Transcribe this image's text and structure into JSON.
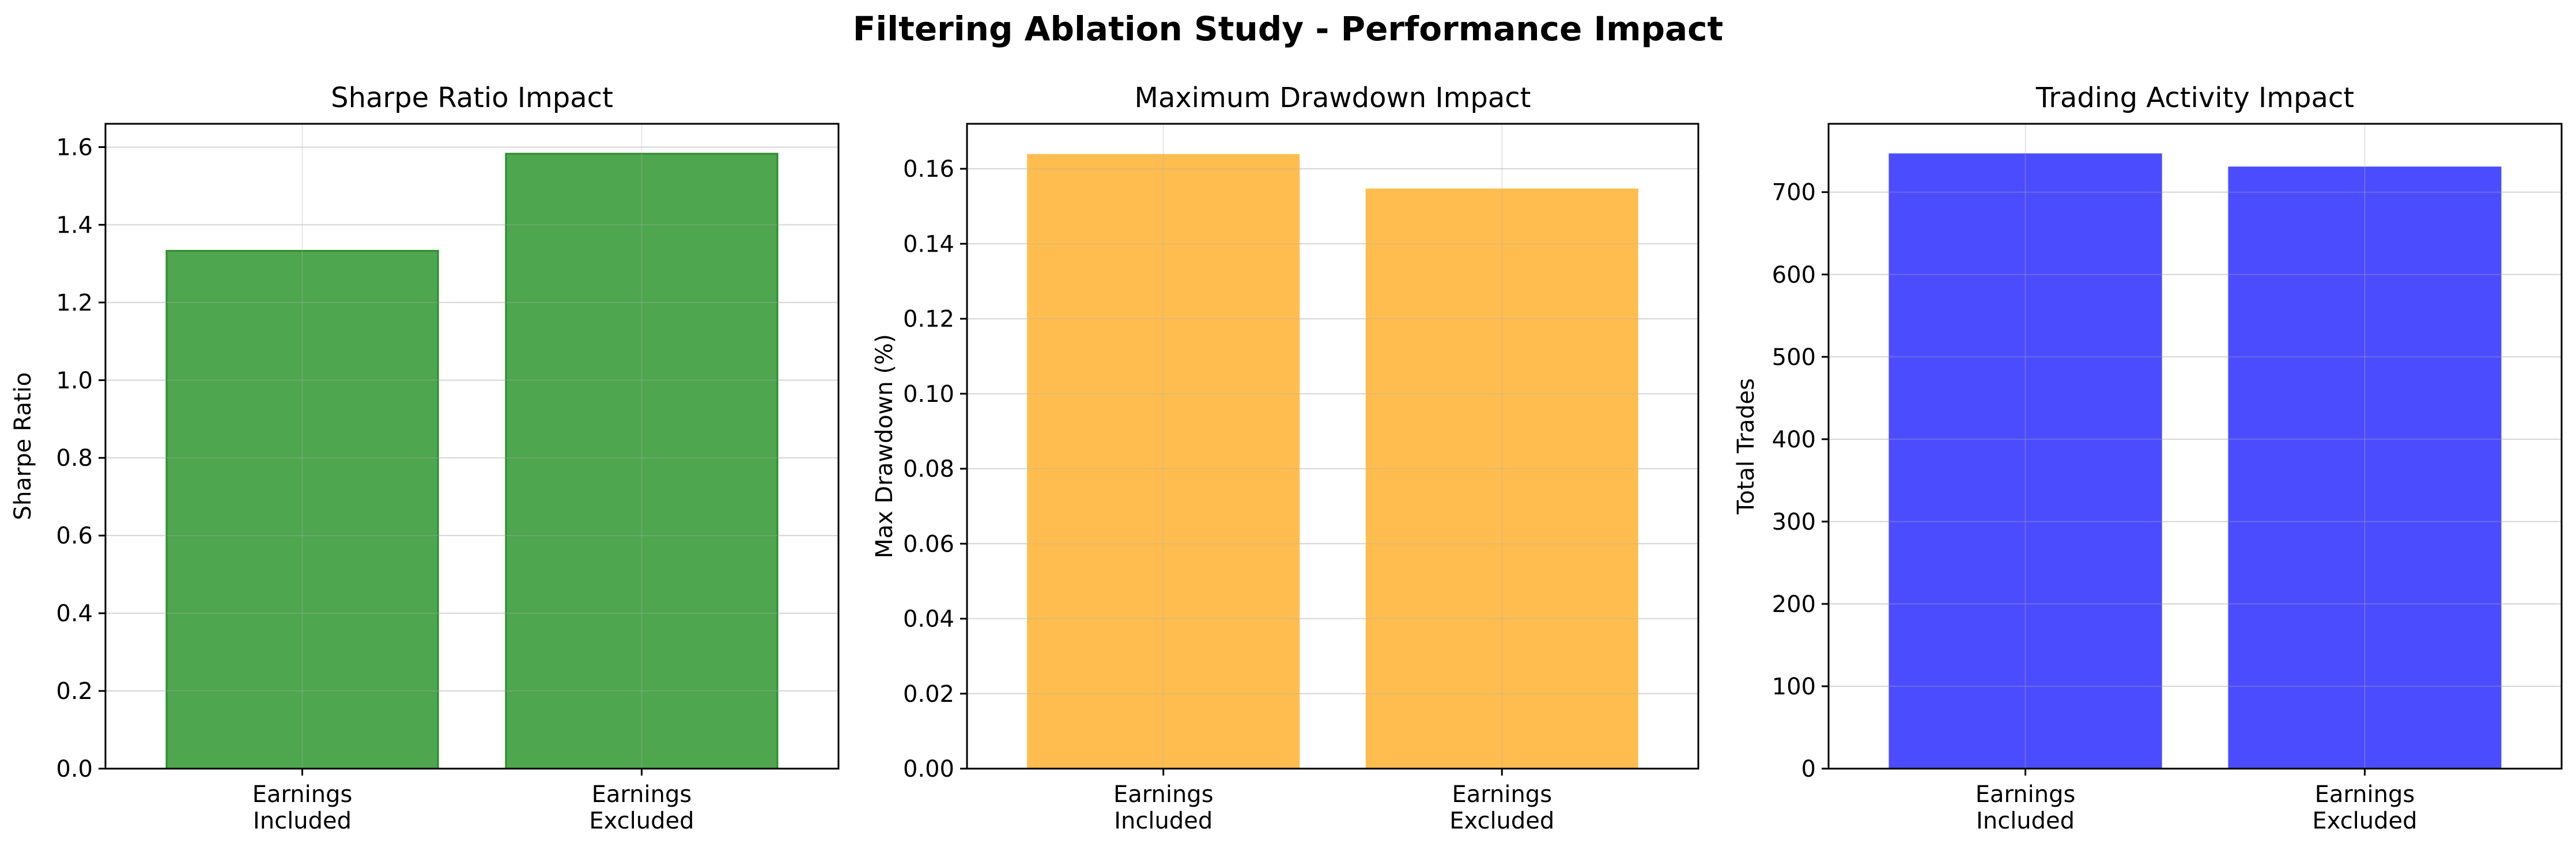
{
  "figure": {
    "title": "Filtering Ablation Study - Performance Impact"
  },
  "chart_data": [
    {
      "type": "bar",
      "title": "Sharpe Ratio Impact",
      "xlabel": "",
      "ylabel": "Sharpe Ratio",
      "categories": [
        "Earnings\nIncluded",
        "Earnings\nExcluded"
      ],
      "values": [
        1.333,
        1.583
      ],
      "ylim": [
        0,
        1.66
      ],
      "yticks": [
        0.0,
        0.2,
        0.4,
        0.6,
        0.8,
        1.0,
        1.2,
        1.4,
        1.6
      ],
      "ytick_labels": [
        "0.0",
        "0.2",
        "0.4",
        "0.6",
        "0.8",
        "1.0",
        "1.2",
        "1.4",
        "1.6"
      ],
      "color": "#4ea64e",
      "edge_color": "#2e8b2e",
      "grid": true
    },
    {
      "type": "bar",
      "title": "Maximum Drawdown Impact",
      "xlabel": "",
      "ylabel": "Max Drawdown (%)",
      "categories": [
        "Earnings\nIncluded",
        "Earnings\nExcluded"
      ],
      "values": [
        0.1637,
        0.1545
      ],
      "ylim": [
        0,
        0.172
      ],
      "yticks": [
        0.0,
        0.02,
        0.04,
        0.06,
        0.08,
        0.1,
        0.12,
        0.14,
        0.16
      ],
      "ytick_labels": [
        "0.00",
        "0.02",
        "0.04",
        "0.06",
        "0.08",
        "0.10",
        "0.12",
        "0.14",
        "0.16"
      ],
      "color": "#ffbd4f",
      "edge_color": "#ffbd4f",
      "grid": true
    },
    {
      "type": "bar",
      "title": "Trading Activity Impact",
      "xlabel": "",
      "ylabel": "Total Trades",
      "categories": [
        "Earnings\nIncluded",
        "Earnings\nExcluded"
      ],
      "values": [
        746,
        730
      ],
      "ylim": [
        0,
        783
      ],
      "yticks": [
        0,
        100,
        200,
        300,
        400,
        500,
        600,
        700
      ],
      "ytick_labels": [
        "0",
        "100",
        "200",
        "300",
        "400",
        "500",
        "600",
        "700"
      ],
      "color": "#4c4cff",
      "edge_color": "#4c4cff",
      "grid": true
    }
  ]
}
